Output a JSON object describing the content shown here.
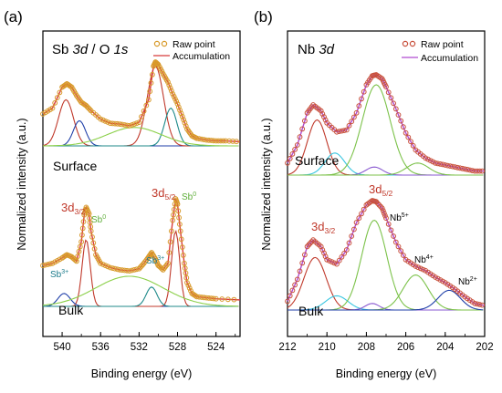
{
  "colors": {
    "raw_a": "#d89a2a",
    "raw_b": "#c8503c",
    "accum_a": "#d83a3a",
    "accum_b": "#b04ad0",
    "peak_red": "#c0392b",
    "peak_green": "#7cc24a",
    "peak_blue": "#1f3fa8",
    "peak_teal": "#1f8a8a",
    "peak_cyan": "#3ac6e0",
    "peak_lilac": "#8a5ad0",
    "baseline_green": "#8cd04a",
    "label_teal": "#1a7a8a",
    "label_green": "#5fae3a",
    "label_red": "#c0392b"
  },
  "chart_data": [
    {
      "panel_label": "(a)",
      "type": "line",
      "title_parts": [
        "Sb ",
        "3d",
        " / O ",
        "1s"
      ],
      "xlabel": "Binding energy (eV)",
      "ylabel": "Normalized intensity (a.u.)",
      "xlim": [
        542,
        521.5
      ],
      "x_reversed": true,
      "x_ticks": [
        540,
        536,
        532,
        528,
        524
      ],
      "legend": {
        "position": "top-right",
        "entries": [
          "Raw point",
          "Accumulation"
        ]
      },
      "series": [
        {
          "group": "Surface",
          "points": [
            [
              542,
              0.38
            ],
            [
              541,
              0.45
            ],
            [
              540,
              0.7
            ],
            [
              539.5,
              0.74
            ],
            [
              539,
              0.7
            ],
            [
              538.5,
              0.6
            ],
            [
              538,
              0.52
            ],
            [
              537.5,
              0.48
            ],
            [
              537,
              0.42
            ],
            [
              536,
              0.32
            ],
            [
              535,
              0.27
            ],
            [
              534,
              0.26
            ],
            [
              533,
              0.24
            ],
            [
              532,
              0.28
            ],
            [
              531,
              0.55
            ],
            [
              530.5,
              0.95
            ],
            [
              530.3,
              1.0
            ],
            [
              530,
              0.97
            ],
            [
              529.5,
              0.86
            ],
            [
              529,
              0.76
            ],
            [
              528.5,
              0.62
            ],
            [
              528,
              0.5
            ],
            [
              527.5,
              0.35
            ],
            [
              527,
              0.2
            ],
            [
              526.5,
              0.12
            ],
            [
              526,
              0.09
            ],
            [
              525,
              0.07
            ],
            [
              524,
              0.06
            ],
            [
              523,
              0.06
            ],
            [
              521.5,
              0.05
            ]
          ]
        },
        {
          "group": "Bulk",
          "points": [
            [
              542,
              0.38
            ],
            [
              541,
              0.4
            ],
            [
              540,
              0.45
            ],
            [
              539.5,
              0.48
            ],
            [
              539,
              0.46
            ],
            [
              538.5,
              0.42
            ],
            [
              538,
              0.6
            ],
            [
              537.7,
              0.85
            ],
            [
              537.5,
              0.92
            ],
            [
              537.2,
              0.86
            ],
            [
              537,
              0.7
            ],
            [
              536.5,
              0.48
            ],
            [
              536,
              0.4
            ],
            [
              535,
              0.36
            ],
            [
              534,
              0.34
            ],
            [
              533,
              0.33
            ],
            [
              532,
              0.35
            ],
            [
              531.5,
              0.4
            ],
            [
              531,
              0.46
            ],
            [
              530.7,
              0.5
            ],
            [
              530.3,
              0.44
            ],
            [
              530,
              0.38
            ],
            [
              529.5,
              0.34
            ],
            [
              529,
              0.4
            ],
            [
              528.5,
              0.8
            ],
            [
              528.2,
              1.0
            ],
            [
              528,
              0.95
            ],
            [
              527.7,
              0.7
            ],
            [
              527.3,
              0.4
            ],
            [
              527,
              0.22
            ],
            [
              526.5,
              0.12
            ],
            [
              526,
              0.09
            ],
            [
              525,
              0.08
            ],
            [
              524,
              0.07
            ],
            [
              521.5,
              0.06
            ]
          ]
        }
      ],
      "annotations": [
        {
          "group": "Surface",
          "text": "Surface"
        },
        {
          "group": "Bulk",
          "text": "Bulk"
        },
        {
          "group": "Bulk",
          "text_main": "3d",
          "text_sub": "3/2",
          "color": "label_red"
        },
        {
          "group": "Bulk",
          "text_main": "Sb",
          "text_sup": "0",
          "color": "label_green",
          "near_x": 537.2
        },
        {
          "group": "Bulk",
          "text_main": "Sb",
          "text_sup": "3+",
          "color": "label_teal",
          "near_x": 539.8
        },
        {
          "group": "Bulk",
          "text_main": "3d",
          "text_sub": "5/2",
          "color": "label_red"
        },
        {
          "group": "Bulk",
          "text_main": "Sb",
          "text_sup": "0",
          "color": "label_green",
          "near_x": 527.5
        },
        {
          "group": "Bulk",
          "text_main": "Sb",
          "text_sup": "3+",
          "color": "label_teal",
          "near_x": 531
        }
      ]
    },
    {
      "panel_label": "(b)",
      "type": "line",
      "title_parts": [
        "Nb ",
        "3d"
      ],
      "xlabel": "Binding energy (eV)",
      "ylabel": "Normalized intensity (a.u.)",
      "xlim": [
        212,
        202
      ],
      "x_reversed": true,
      "x_ticks": [
        212,
        210,
        208,
        206,
        204,
        202
      ],
      "legend": {
        "position": "top-right",
        "entries": [
          "Raw point",
          "Accumulation"
        ]
      },
      "series": [
        {
          "group": "Surface",
          "points": [
            [
              212,
              0.12
            ],
            [
              211.5,
              0.3
            ],
            [
              211,
              0.62
            ],
            [
              210.7,
              0.7
            ],
            [
              210.3,
              0.64
            ],
            [
              210,
              0.52
            ],
            [
              209.5,
              0.43
            ],
            [
              209,
              0.45
            ],
            [
              208.5,
              0.62
            ],
            [
              208,
              0.9
            ],
            [
              207.7,
              0.99
            ],
            [
              207.5,
              1.0
            ],
            [
              207.2,
              0.96
            ],
            [
              207,
              0.88
            ],
            [
              206.5,
              0.66
            ],
            [
              206,
              0.42
            ],
            [
              205.5,
              0.25
            ],
            [
              205,
              0.17
            ],
            [
              204.5,
              0.12
            ],
            [
              204,
              0.1
            ],
            [
              203.5,
              0.08
            ],
            [
              203,
              0.06
            ],
            [
              202.5,
              0.04
            ],
            [
              202,
              0.04
            ]
          ]
        },
        {
          "group": "Bulk",
          "points": [
            [
              212,
              0.08
            ],
            [
              211.5,
              0.28
            ],
            [
              211,
              0.58
            ],
            [
              210.7,
              0.64
            ],
            [
              210.3,
              0.58
            ],
            [
              210,
              0.46
            ],
            [
              209.5,
              0.42
            ],
            [
              209,
              0.55
            ],
            [
              208.5,
              0.8
            ],
            [
              208,
              0.96
            ],
            [
              207.7,
              1.0
            ],
            [
              207.5,
              0.99
            ],
            [
              207.2,
              0.93
            ],
            [
              207,
              0.84
            ],
            [
              206.5,
              0.62
            ],
            [
              206,
              0.46
            ],
            [
              205.5,
              0.4
            ],
            [
              205,
              0.36
            ],
            [
              204.5,
              0.3
            ],
            [
              204,
              0.25
            ],
            [
              203.5,
              0.19
            ],
            [
              203,
              0.12
            ],
            [
              202.5,
              0.06
            ],
            [
              202,
              0.04
            ]
          ]
        }
      ],
      "annotations": [
        {
          "group": "Surface",
          "text": "Surface"
        },
        {
          "group": "Bulk",
          "text": "Bulk"
        },
        {
          "group": "Bulk",
          "text_main": "3d",
          "text_sub": "3/2",
          "color": "label_red"
        },
        {
          "group": "Bulk",
          "text_main": "3d",
          "text_sub": "5/2",
          "color": "label_red"
        },
        {
          "group": "Bulk",
          "text_main": "Nb",
          "text_sup": "5+",
          "color": "black"
        },
        {
          "group": "Bulk",
          "text_main": "Nb",
          "text_sup": "4+",
          "color": "black"
        },
        {
          "group": "Bulk",
          "text_main": "Nb",
          "text_sup": "2+",
          "color": "black"
        }
      ]
    }
  ]
}
